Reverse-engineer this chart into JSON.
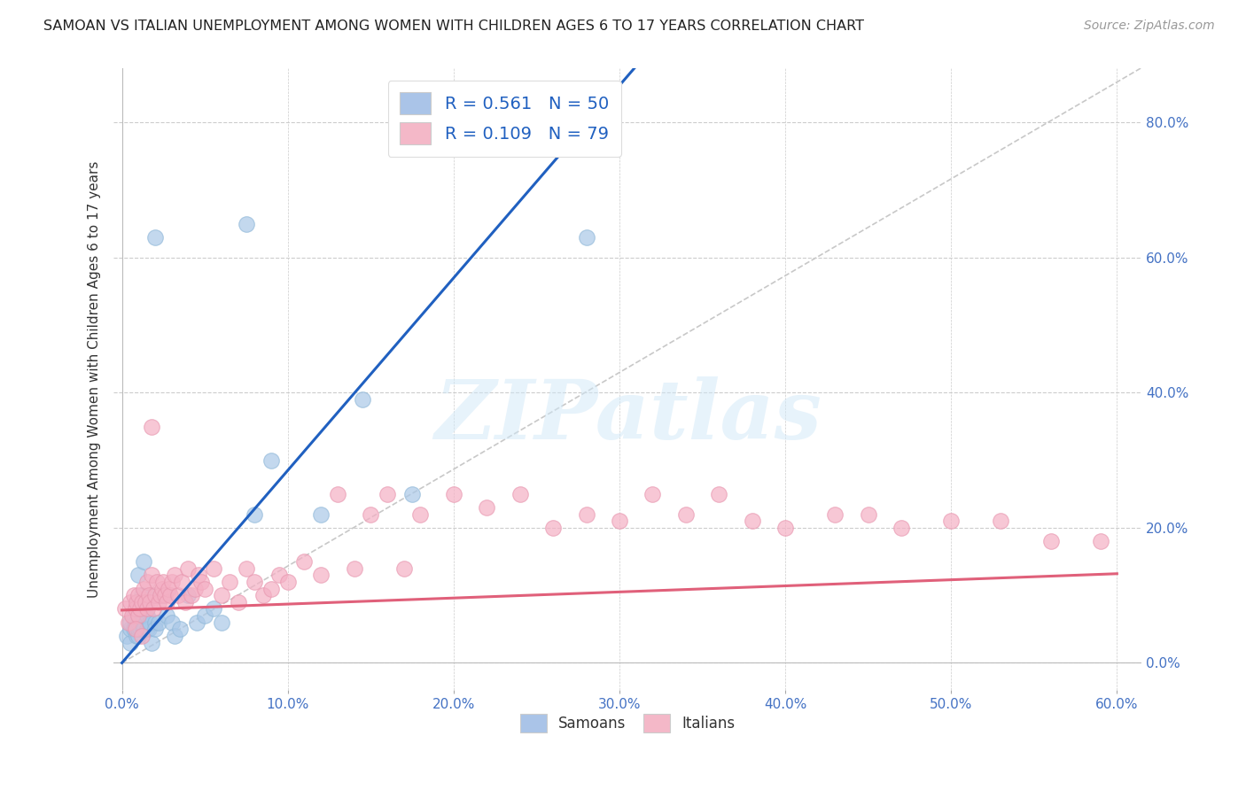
{
  "title": "SAMOAN VS ITALIAN UNEMPLOYMENT AMONG WOMEN WITH CHILDREN AGES 6 TO 17 YEARS CORRELATION CHART",
  "source": "Source: ZipAtlas.com",
  "ylabel": "Unemployment Among Women with Children Ages 6 to 17 years",
  "x_tick_values": [
    0.0,
    0.1,
    0.2,
    0.3,
    0.4,
    0.5,
    0.6
  ],
  "y_tick_values": [
    0.0,
    0.2,
    0.4,
    0.6,
    0.8
  ],
  "xlim": [
    -0.005,
    0.615
  ],
  "ylim": [
    -0.04,
    0.88
  ],
  "legend_entries": [
    {
      "label": "R = 0.561   N = 50",
      "color": "#aac4e8"
    },
    {
      "label": "R = 0.109   N = 79",
      "color": "#f4b8c8"
    }
  ],
  "bottom_legend": [
    {
      "label": "Samoans",
      "color": "#aac4e8"
    },
    {
      "label": "Italians",
      "color": "#f4b8c8"
    }
  ],
  "blue_scatter": "#aac8e8",
  "pink_scatter": "#f4b0c4",
  "trend_blue": "#2060c0",
  "trend_pink": "#e0607a",
  "grid_color": "#cccccc",
  "background_color": "#ffffff",
  "watermark_text": "ZIPatlas",
  "blue_trend_slope": 2.85,
  "blue_trend_intercept": 0.0,
  "pink_trend_slope": 0.09,
  "pink_trend_intercept": 0.078,
  "samoans_x": [
    0.003,
    0.005,
    0.005,
    0.005,
    0.007,
    0.007,
    0.008,
    0.008,
    0.009,
    0.009,
    0.01,
    0.01,
    0.01,
    0.01,
    0.01,
    0.01,
    0.01,
    0.011,
    0.012,
    0.012,
    0.013,
    0.013,
    0.015,
    0.015,
    0.015,
    0.016,
    0.017,
    0.018,
    0.018,
    0.02,
    0.02,
    0.022,
    0.025,
    0.027,
    0.03,
    0.032,
    0.035,
    0.04,
    0.045,
    0.05,
    0.055,
    0.06,
    0.08,
    0.09,
    0.12,
    0.145,
    0.175,
    0.28,
    0.02,
    0.075
  ],
  "samoans_y": [
    0.04,
    0.03,
    0.05,
    0.06,
    0.05,
    0.07,
    0.05,
    0.06,
    0.04,
    0.05,
    0.04,
    0.05,
    0.06,
    0.07,
    0.08,
    0.09,
    0.13,
    0.05,
    0.06,
    0.1,
    0.05,
    0.15,
    0.05,
    0.07,
    0.08,
    0.05,
    0.06,
    0.03,
    0.1,
    0.06,
    0.05,
    0.06,
    0.1,
    0.07,
    0.06,
    0.04,
    0.05,
    0.1,
    0.06,
    0.07,
    0.08,
    0.06,
    0.22,
    0.3,
    0.22,
    0.39,
    0.25,
    0.63,
    0.63,
    0.65
  ],
  "italians_x": [
    0.002,
    0.004,
    0.005,
    0.006,
    0.007,
    0.008,
    0.009,
    0.01,
    0.01,
    0.011,
    0.012,
    0.013,
    0.014,
    0.015,
    0.015,
    0.016,
    0.017,
    0.018,
    0.019,
    0.02,
    0.021,
    0.022,
    0.023,
    0.024,
    0.025,
    0.026,
    0.027,
    0.028,
    0.029,
    0.03,
    0.032,
    0.034,
    0.036,
    0.038,
    0.04,
    0.042,
    0.044,
    0.046,
    0.048,
    0.05,
    0.055,
    0.06,
    0.065,
    0.07,
    0.075,
    0.08,
    0.085,
    0.09,
    0.095,
    0.1,
    0.11,
    0.12,
    0.13,
    0.14,
    0.15,
    0.16,
    0.17,
    0.18,
    0.2,
    0.22,
    0.24,
    0.26,
    0.28,
    0.3,
    0.32,
    0.34,
    0.36,
    0.38,
    0.4,
    0.43,
    0.45,
    0.47,
    0.5,
    0.53,
    0.56,
    0.59,
    0.008,
    0.012,
    0.018
  ],
  "italians_y": [
    0.08,
    0.06,
    0.09,
    0.07,
    0.1,
    0.08,
    0.09,
    0.07,
    0.1,
    0.08,
    0.09,
    0.11,
    0.09,
    0.08,
    0.12,
    0.1,
    0.09,
    0.13,
    0.08,
    0.1,
    0.12,
    0.09,
    0.1,
    0.11,
    0.12,
    0.1,
    0.09,
    0.11,
    0.1,
    0.12,
    0.13,
    0.1,
    0.12,
    0.09,
    0.14,
    0.1,
    0.11,
    0.13,
    0.12,
    0.11,
    0.14,
    0.1,
    0.12,
    0.09,
    0.14,
    0.12,
    0.1,
    0.11,
    0.13,
    0.12,
    0.15,
    0.13,
    0.25,
    0.14,
    0.22,
    0.25,
    0.14,
    0.22,
    0.25,
    0.23,
    0.25,
    0.2,
    0.22,
    0.21,
    0.25,
    0.22,
    0.25,
    0.21,
    0.2,
    0.22,
    0.22,
    0.2,
    0.21,
    0.21,
    0.18,
    0.18,
    0.05,
    0.04,
    0.35
  ]
}
